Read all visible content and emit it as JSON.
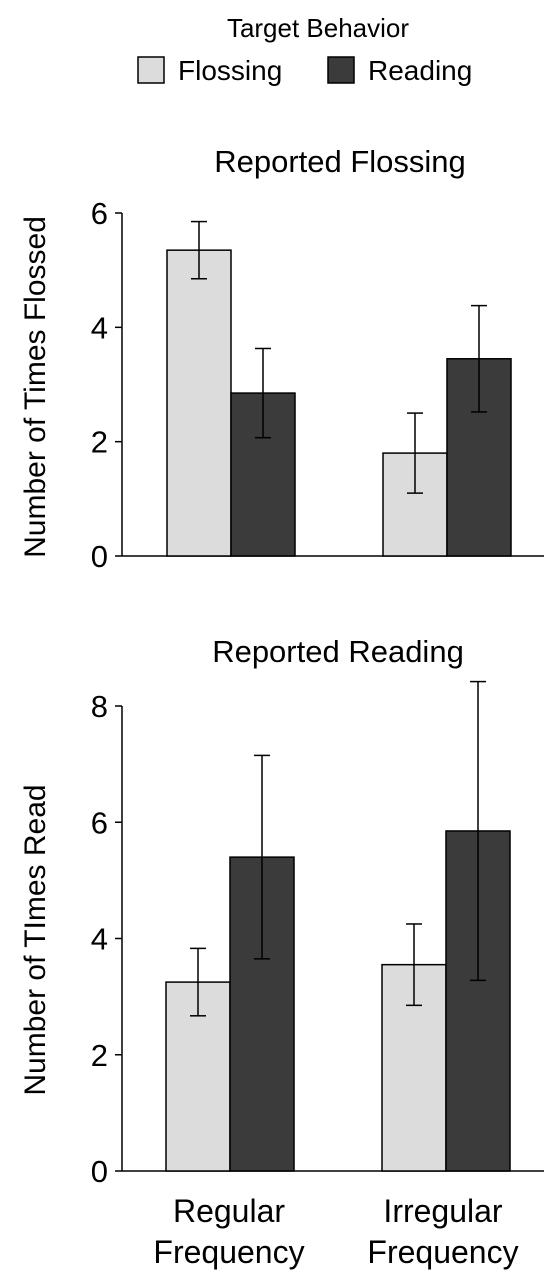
{
  "chart_data": [
    {
      "type": "bar",
      "title": "Reported Flossing",
      "ylabel": "Number of Times Flossed",
      "xlabel": "",
      "categories": [
        "Regular Frequency",
        "Irregular Frequency"
      ],
      "series": [
        {
          "name": "Flossing",
          "color": "#dcdcdc",
          "values": [
            5.35,
            1.8
          ],
          "error": [
            0.5,
            0.7
          ]
        },
        {
          "name": "Reading",
          "color": "#3b3b3b",
          "values": [
            2.85,
            3.45
          ],
          "error": [
            0.78,
            0.93
          ]
        }
      ],
      "ylim": [
        0,
        6
      ],
      "yticks": [
        0,
        2,
        4,
        6
      ],
      "grid": false
    },
    {
      "type": "bar",
      "title": "Reported Reading",
      "ylabel": "Number of TImes Read",
      "xlabel": "",
      "categories": [
        "Regular Frequency",
        "Irregular Frequency"
      ],
      "series": [
        {
          "name": "Flossing",
          "color": "#dcdcdc",
          "values": [
            3.25,
            3.55
          ],
          "error": [
            0.58,
            0.7
          ]
        },
        {
          "name": "Reading",
          "color": "#3b3b3b",
          "values": [
            5.4,
            5.85
          ],
          "error": [
            1.75,
            2.57
          ]
        }
      ],
      "ylim": [
        0,
        8
      ],
      "yticks": [
        0,
        2,
        4,
        6,
        8
      ],
      "grid": false
    }
  ],
  "legend": {
    "title": "Target Behavior",
    "placement": "top-center",
    "items": [
      {
        "label": "Flossing",
        "color": "#dcdcdc"
      },
      {
        "label": "Reading",
        "color": "#3b3b3b"
      }
    ]
  },
  "x_axis": {
    "category_labels": [
      {
        "line1": "Regular",
        "line2": "Frequency"
      },
      {
        "line1": "Irregular",
        "line2": "Frequency"
      }
    ]
  }
}
